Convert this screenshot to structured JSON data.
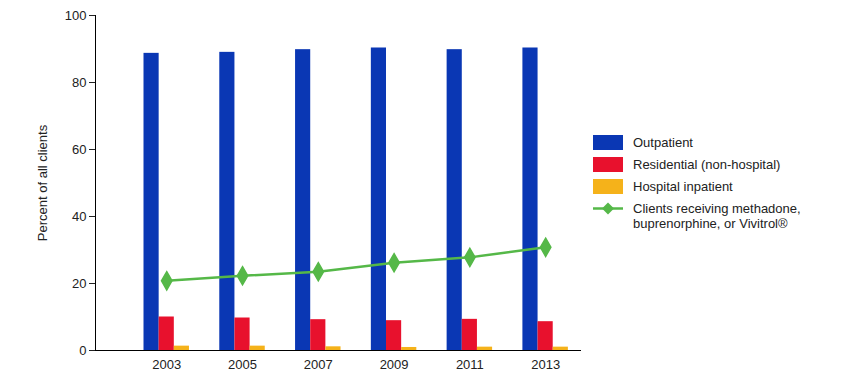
{
  "chart_data": {
    "type": "bar",
    "y_label": "Percent of all clients",
    "categories": [
      "2003",
      "2005",
      "2007",
      "2009",
      "2011",
      "2013"
    ],
    "ylim": [
      0,
      100
    ],
    "yticks": [
      0,
      20,
      40,
      60,
      80,
      100
    ],
    "grid": false,
    "legend": "right",
    "series": [
      {
        "name": "Outpatient",
        "color": "#0a37b4",
        "values": [
          88.7,
          89.0,
          89.8,
          90.3,
          89.8,
          90.3
        ]
      },
      {
        "name": "Residential (non-hospital)",
        "color": "#e8112d",
        "values": [
          10.0,
          9.7,
          9.2,
          8.9,
          9.3,
          8.6
        ]
      },
      {
        "name": "Hospital inpatient",
        "color": "#f5b21a",
        "values": [
          1.3,
          1.3,
          1.1,
          0.9,
          1.0,
          1.0
        ]
      },
      {
        "name": "Clients receiving methadone, buprenorphine, or Vivitrol®",
        "type": "line",
        "marker": "diamond",
        "color": "#55b848",
        "values": [
          20.8,
          22.3,
          23.5,
          26.2,
          27.8,
          30.8
        ]
      }
    ]
  }
}
